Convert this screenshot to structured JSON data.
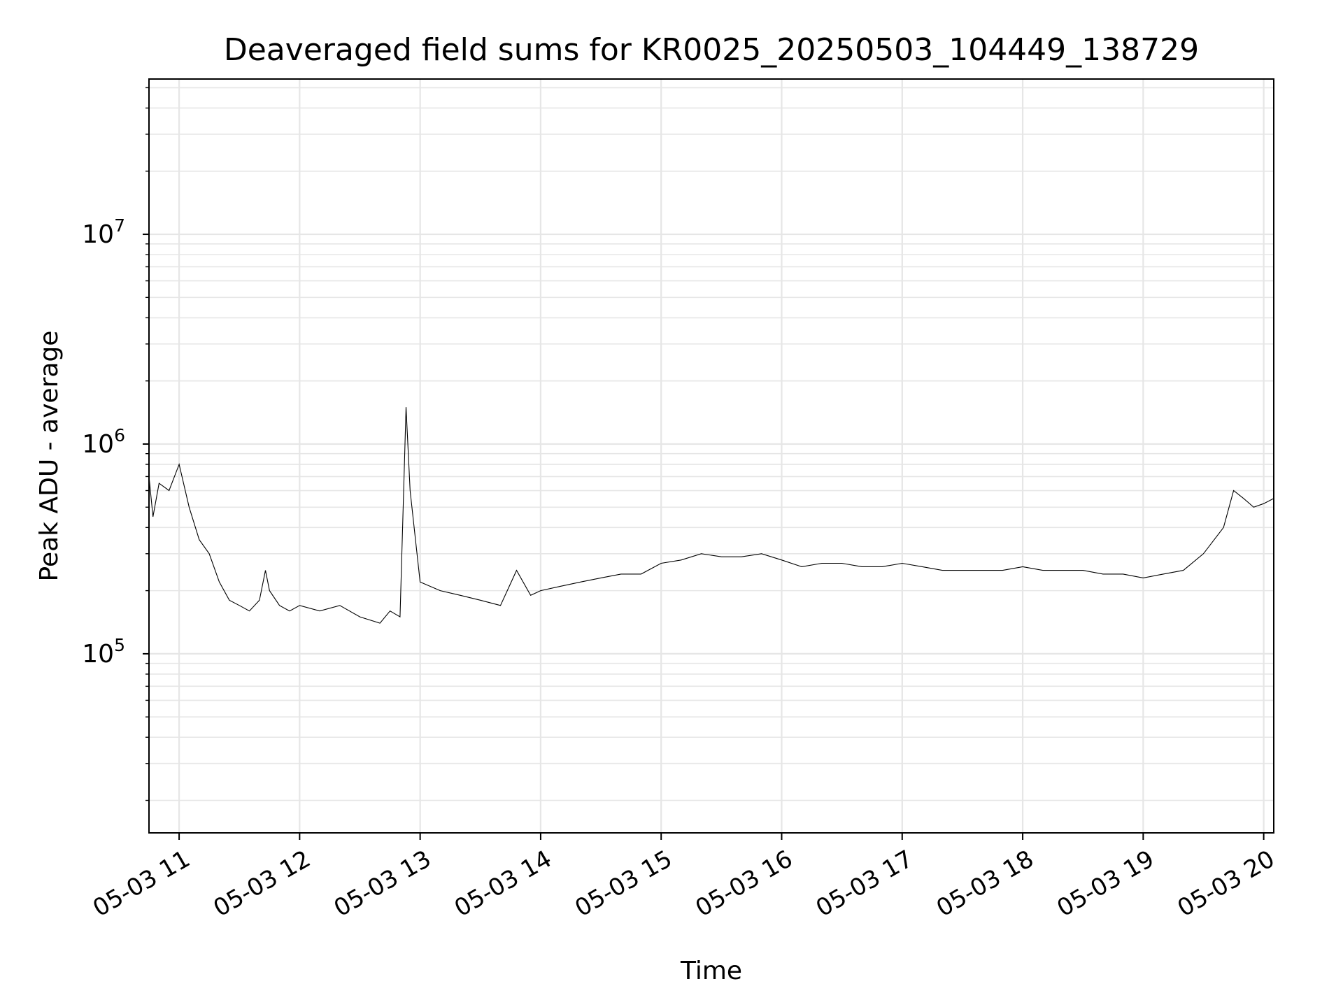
{
  "chart_data": {
    "type": "line",
    "title": "Deaveraged field sums for KR0025_20250503_104449_138729",
    "xlabel": "Time",
    "ylabel": "Peak ADU - average",
    "x_range": [
      "2025-05-03 10:45",
      "2025-05-03 20:05"
    ],
    "y_scale": "log",
    "ylim": [
      14000,
      55000000
    ],
    "grid": true,
    "grid_color": "#e6e6e6",
    "line_color": "#000000",
    "x_ticks": [
      {
        "t": "2025-05-03 11:00",
        "label": "05-03 11"
      },
      {
        "t": "2025-05-03 12:00",
        "label": "05-03 12"
      },
      {
        "t": "2025-05-03 13:00",
        "label": "05-03 13"
      },
      {
        "t": "2025-05-03 14:00",
        "label": "05-03 14"
      },
      {
        "t": "2025-05-03 15:00",
        "label": "05-03 15"
      },
      {
        "t": "2025-05-03 16:00",
        "label": "05-03 16"
      },
      {
        "t": "2025-05-03 17:00",
        "label": "05-03 17"
      },
      {
        "t": "2025-05-03 18:00",
        "label": "05-03 18"
      },
      {
        "t": "2025-05-03 19:00",
        "label": "05-03 19"
      },
      {
        "t": "2025-05-03 20:00",
        "label": "05-03 20"
      }
    ],
    "y_ticks": [
      {
        "value": 100000,
        "base": "10",
        "exp": "5"
      },
      {
        "value": 1000000,
        "base": "10",
        "exp": "6"
      },
      {
        "value": 10000000,
        "base": "10",
        "exp": "7"
      }
    ],
    "series": [
      {
        "x": [
          "2025-05-03 10:45",
          "2025-05-03 10:47",
          "2025-05-03 10:50",
          "2025-05-03 10:55",
          "2025-05-03 11:00",
          "2025-05-03 11:05",
          "2025-05-03 11:10",
          "2025-05-03 11:15",
          "2025-05-03 11:20",
          "2025-05-03 11:25",
          "2025-05-03 11:30",
          "2025-05-03 11:35",
          "2025-05-03 11:40",
          "2025-05-03 11:43",
          "2025-05-03 11:45",
          "2025-05-03 11:50",
          "2025-05-03 11:55",
          "2025-05-03 12:00",
          "2025-05-03 12:10",
          "2025-05-03 12:20",
          "2025-05-03 12:30",
          "2025-05-03 12:40",
          "2025-05-03 12:45",
          "2025-05-03 12:50",
          "2025-05-03 12:53",
          "2025-05-03 12:55",
          "2025-05-03 13:00",
          "2025-05-03 13:10",
          "2025-05-03 13:20",
          "2025-05-03 13:30",
          "2025-05-03 13:40",
          "2025-05-03 13:48",
          "2025-05-03 13:55",
          "2025-05-03 14:00",
          "2025-05-03 14:10",
          "2025-05-03 14:20",
          "2025-05-03 14:30",
          "2025-05-03 14:40",
          "2025-05-03 14:50",
          "2025-05-03 15:00",
          "2025-05-03 15:10",
          "2025-05-03 15:20",
          "2025-05-03 15:30",
          "2025-05-03 15:40",
          "2025-05-03 15:50",
          "2025-05-03 16:00",
          "2025-05-03 16:10",
          "2025-05-03 16:20",
          "2025-05-03 16:30",
          "2025-05-03 16:40",
          "2025-05-03 16:50",
          "2025-05-03 17:00",
          "2025-05-03 17:10",
          "2025-05-03 17:20",
          "2025-05-03 17:30",
          "2025-05-03 17:40",
          "2025-05-03 17:50",
          "2025-05-03 18:00",
          "2025-05-03 18:10",
          "2025-05-03 18:20",
          "2025-05-03 18:30",
          "2025-05-03 18:40",
          "2025-05-03 18:50",
          "2025-05-03 19:00",
          "2025-05-03 19:10",
          "2025-05-03 19:20",
          "2025-05-03 19:30",
          "2025-05-03 19:40",
          "2025-05-03 19:45",
          "2025-05-03 19:50",
          "2025-05-03 19:55",
          "2025-05-03 20:00",
          "2025-05-03 20:05"
        ],
        "values": [
          700000,
          450000,
          650000,
          600000,
          800000,
          500000,
          350000,
          300000,
          220000,
          180000,
          170000,
          160000,
          180000,
          250000,
          200000,
          170000,
          160000,
          170000,
          160000,
          170000,
          150000,
          140000,
          160000,
          150000,
          1500000,
          600000,
          220000,
          200000,
          190000,
          180000,
          170000,
          250000,
          190000,
          200000,
          210000,
          220000,
          230000,
          240000,
          240000,
          270000,
          280000,
          300000,
          290000,
          290000,
          300000,
          280000,
          260000,
          270000,
          270000,
          260000,
          260000,
          270000,
          260000,
          250000,
          250000,
          250000,
          250000,
          260000,
          250000,
          250000,
          250000,
          240000,
          240000,
          230000,
          240000,
          250000,
          300000,
          400000,
          600000,
          550000,
          500000,
          520000,
          550000
        ]
      }
    ]
  }
}
